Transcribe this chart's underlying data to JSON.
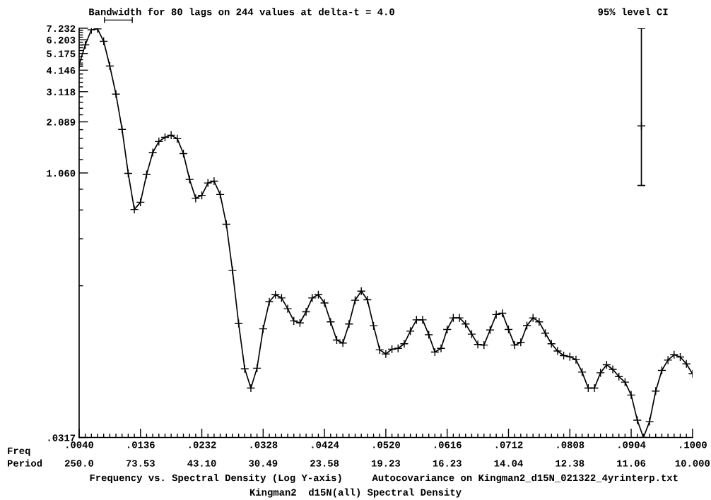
{
  "chart_data": {
    "type": "line",
    "title": "Kingman2  d15N(all) Spectral Density",
    "xlabel": "Frequency vs. Spectral Density (Log Y-axis)     Autocovariance on Kingman2_d15N_021322_4yrinterp.txt",
    "annotations": [
      "Bandwidth for 80 lags on 244 values at delta-t = 4.0",
      "95% level CI",
      "Freq",
      "Period",
      "250.0",
      "73.53",
      "43.10",
      "30.49",
      "23.58",
      "19.23",
      "16.23",
      "14.04",
      "12.38",
      "11.06",
      "10.000"
    ],
    "log": true,
    "grid": false,
    "marker": "cross",
    "line_style": "solid",
    "xlim": [
      0.004,
      0.1
    ],
    "ylim": [
      0.0317,
      7.232
    ],
    "series": [
      {
        "color": "#000000",
        "x": [
          0.004,
          0.00496,
          0.00592,
          0.00688,
          0.00784,
          0.0088,
          0.00976,
          0.01072,
          0.01168,
          0.01264,
          0.0136,
          0.01456,
          0.01552,
          0.01648,
          0.01744,
          0.0184,
          0.01936,
          0.02032,
          0.02128,
          0.02224,
          0.0232,
          0.02416,
          0.02512,
          0.02608,
          0.02704,
          0.028,
          0.02896,
          0.02992,
          0.03088,
          0.03184,
          0.0328,
          0.03376,
          0.03472,
          0.03568,
          0.03664,
          0.0376,
          0.03856,
          0.03952,
          0.04048,
          0.04144,
          0.0424,
          0.04336,
          0.04432,
          0.04528,
          0.04624,
          0.0472,
          0.04816,
          0.04912,
          0.05008,
          0.05104,
          0.052,
          0.05296,
          0.05392,
          0.05488,
          0.05584,
          0.0568,
          0.05776,
          0.05872,
          0.05968,
          0.06064,
          0.0616,
          0.06256,
          0.06352,
          0.06448,
          0.06544,
          0.0664,
          0.06736,
          0.06832,
          0.06928,
          0.07024,
          0.0712,
          0.07216,
          0.07312,
          0.07408,
          0.07504,
          0.076,
          0.07696,
          0.07792,
          0.07888,
          0.07984,
          0.0808,
          0.08176,
          0.08272,
          0.08368,
          0.08464,
          0.0856,
          0.08656,
          0.08752,
          0.08848,
          0.08944,
          0.0904,
          0.09136,
          0.09232,
          0.09328,
          0.09424,
          0.0952,
          0.09616,
          0.09712,
          0.09808,
          0.09904,
          0.1
        ],
        "values": [
          4.45,
          5.8,
          7.08,
          7.17,
          6.08,
          4.38,
          3.02,
          1.89,
          1.055,
          0.653,
          0.719,
          1.04,
          1.39,
          1.61,
          1.7,
          1.75,
          1.67,
          1.37,
          0.974,
          0.757,
          0.788,
          0.928,
          0.951,
          0.797,
          0.537,
          0.291,
          0.144,
          0.0788,
          0.0611,
          0.0795,
          0.134,
          0.192,
          0.211,
          0.202,
          0.175,
          0.149,
          0.145,
          0.168,
          0.202,
          0.211,
          0.189,
          0.147,
          0.1155,
          0.111,
          0.143,
          0.196,
          0.221,
          0.197,
          0.1395,
          0.1014,
          0.096,
          0.1023,
          0.1035,
          0.11,
          0.13,
          0.151,
          0.151,
          0.124,
          0.0985,
          0.1035,
          0.133,
          0.155,
          0.155,
          0.143,
          0.125,
          0.109,
          0.108,
          0.132,
          0.162,
          0.165,
          0.133,
          0.108,
          0.112,
          0.14,
          0.155,
          0.147,
          0.1266,
          0.11,
          0.0999,
          0.094,
          0.0926,
          0.089,
          0.0755,
          0.0611,
          0.0611,
          0.0748,
          0.0832,
          0.0783,
          0.0711,
          0.0661,
          0.0557,
          0.0399,
          0.0317,
          0.0392,
          0.0587,
          0.0772,
          0.0885,
          0.0951,
          0.0923,
          0.0842,
          0.0738
        ]
      },
      {
        "type": "scatter",
        "color": "#000000",
        "x": [
          0.092
        ],
        "values": [
          1.98
        ],
        "errors": [
          [
            0.898,
            7.23
          ]
        ]
      }
    ],
    "xticks": [
      {
        "value": 0.004,
        "label": ".0040"
      },
      {
        "value": 0.00496,
        "label": null
      },
      {
        "value": 0.00592,
        "label": null
      },
      {
        "value": 0.00688,
        "label": null
      },
      {
        "value": 0.00784,
        "label": null
      },
      {
        "value": 0.0088,
        "label": null
      },
      {
        "value": 0.00976,
        "label": null
      },
      {
        "value": 0.01072,
        "label": null
      },
      {
        "value": 0.01168,
        "label": null
      },
      {
        "value": 0.01264,
        "label": null
      },
      {
        "value": 0.0136,
        "label": ".0136"
      },
      {
        "value": 0.01456,
        "label": null
      },
      {
        "value": 0.01552,
        "label": null
      },
      {
        "value": 0.01648,
        "label": null
      },
      {
        "value": 0.01744,
        "label": null
      },
      {
        "value": 0.0184,
        "label": null
      },
      {
        "value": 0.01936,
        "label": null
      },
      {
        "value": 0.02032,
        "label": null
      },
      {
        "value": 0.02128,
        "label": null
      },
      {
        "value": 0.02224,
        "label": null
      },
      {
        "value": 0.0232,
        "label": ".0232"
      },
      {
        "value": 0.02416,
        "label": null
      },
      {
        "value": 0.02512,
        "label": null
      },
      {
        "value": 0.02608,
        "label": null
      },
      {
        "value": 0.02704,
        "label": null
      },
      {
        "value": 0.028,
        "label": null
      },
      {
        "value": 0.02896,
        "label": null
      },
      {
        "value": 0.02992,
        "label": null
      },
      {
        "value": 0.03088,
        "label": null
      },
      {
        "value": 0.03184,
        "label": null
      },
      {
        "value": 0.0328,
        "label": ".0328"
      },
      {
        "value": 0.03376,
        "label": null
      },
      {
        "value": 0.03472,
        "label": null
      },
      {
        "value": 0.03568,
        "label": null
      },
      {
        "value": 0.03664,
        "label": null
      },
      {
        "value": 0.0376,
        "label": null
      },
      {
        "value": 0.03856,
        "label": null
      },
      {
        "value": 0.03952,
        "label": null
      },
      {
        "value": 0.04048,
        "label": null
      },
      {
        "value": 0.04144,
        "label": null
      },
      {
        "value": 0.0424,
        "label": ".0424"
      },
      {
        "value": 0.04336,
        "label": null
      },
      {
        "value": 0.04432,
        "label": null
      },
      {
        "value": 0.04528,
        "label": null
      },
      {
        "value": 0.04624,
        "label": null
      },
      {
        "value": 0.0472,
        "label": null
      },
      {
        "value": 0.04816,
        "label": null
      },
      {
        "value": 0.04912,
        "label": null
      },
      {
        "value": 0.05008,
        "label": null
      },
      {
        "value": 0.05104,
        "label": null
      },
      {
        "value": 0.052,
        "label": ".0520"
      },
      {
        "value": 0.05296,
        "label": null
      },
      {
        "value": 0.05392,
        "label": null
      },
      {
        "value": 0.05488,
        "label": null
      },
      {
        "value": 0.05584,
        "label": null
      },
      {
        "value": 0.0568,
        "label": null
      },
      {
        "value": 0.05776,
        "label": null
      },
      {
        "value": 0.05872,
        "label": null
      },
      {
        "value": 0.05968,
        "label": null
      },
      {
        "value": 0.06064,
        "label": null
      },
      {
        "value": 0.0616,
        "label": ".0616"
      },
      {
        "value": 0.06256,
        "label": null
      },
      {
        "value": 0.06352,
        "label": null
      },
      {
        "value": 0.06448,
        "label": null
      },
      {
        "value": 0.06544,
        "label": null
      },
      {
        "value": 0.0664,
        "label": null
      },
      {
        "value": 0.06736,
        "label": null
      },
      {
        "value": 0.06832,
        "label": null
      },
      {
        "value": 0.06928,
        "label": null
      },
      {
        "value": 0.07024,
        "label": null
      },
      {
        "value": 0.0712,
        "label": ".0712"
      },
      {
        "value": 0.07216,
        "label": null
      },
      {
        "value": 0.07312,
        "label": null
      },
      {
        "value": 0.07408,
        "label": null
      },
      {
        "value": 0.07504,
        "label": null
      },
      {
        "value": 0.076,
        "label": null
      },
      {
        "value": 0.07696,
        "label": null
      },
      {
        "value": 0.07792,
        "label": null
      },
      {
        "value": 0.07888,
        "label": null
      },
      {
        "value": 0.07984,
        "label": null
      },
      {
        "value": 0.0808,
        "label": ".0808"
      },
      {
        "value": 0.08176,
        "label": null
      },
      {
        "value": 0.08272,
        "label": null
      },
      {
        "value": 0.08368,
        "label": null
      },
      {
        "value": 0.08464,
        "label": null
      },
      {
        "value": 0.0856,
        "label": null
      },
      {
        "value": 0.08656,
        "label": null
      },
      {
        "value": 0.08752,
        "label": null
      },
      {
        "value": 0.08848,
        "label": null
      },
      {
        "value": 0.08944,
        "label": null
      },
      {
        "value": 0.0904,
        "label": ".0904"
      },
      {
        "value": 0.09136,
        "label": null
      },
      {
        "value": 0.09232,
        "label": null
      },
      {
        "value": 0.09328,
        "label": null
      },
      {
        "value": 0.09424,
        "label": null
      },
      {
        "value": 0.0952,
        "label": null
      },
      {
        "value": 0.09616,
        "label": null
      },
      {
        "value": 0.09712,
        "label": null
      },
      {
        "value": 0.09808,
        "label": null
      },
      {
        "value": 0.09904,
        "label": null
      },
      {
        "value": 0.1,
        "label": ".1000"
      }
    ],
    "yticks": [
      {
        "value": 0.0317,
        "label": ".0317"
      },
      {
        "value": 0.2374,
        "label": null
      },
      {
        "value": 0.4431,
        "label": null
      },
      {
        "value": 0.6489,
        "label": null
      },
      {
        "value": 0.8546,
        "label": null
      },
      {
        "value": 1.0603,
        "label": "1.060"
      },
      {
        "value": 1.266,
        "label": null
      },
      {
        "value": 1.4718,
        "label": null
      },
      {
        "value": 1.6775,
        "label": null
      },
      {
        "value": 1.8832,
        "label": null
      },
      {
        "value": 2.0889,
        "label": "2.089"
      },
      {
        "value": 2.2947,
        "label": null
      },
      {
        "value": 2.5004,
        "label": null
      },
      {
        "value": 2.7061,
        "label": null
      },
      {
        "value": 2.9118,
        "label": null
      },
      {
        "value": 3.1175,
        "label": "3.118"
      },
      {
        "value": 3.3233,
        "label": null
      },
      {
        "value": 3.529,
        "label": null
      },
      {
        "value": 3.7347,
        "label": null
      },
      {
        "value": 3.9404,
        "label": null
      },
      {
        "value": 4.1462,
        "label": "4.146"
      },
      {
        "value": 4.3519,
        "label": null
      },
      {
        "value": 4.5576,
        "label": null
      },
      {
        "value": 4.7633,
        "label": null
      },
      {
        "value": 4.969,
        "label": null
      },
      {
        "value": 5.1748,
        "label": "5.175"
      },
      {
        "value": 5.3805,
        "label": null
      },
      {
        "value": 5.5862,
        "label": null
      },
      {
        "value": 5.7919,
        "label": null
      },
      {
        "value": 5.9977,
        "label": null
      },
      {
        "value": 6.2034,
        "label": "6.203"
      },
      {
        "value": 6.4091,
        "label": null
      },
      {
        "value": 6.6148,
        "label": null
      },
      {
        "value": 6.8205,
        "label": null
      },
      {
        "value": 7.0263,
        "label": null
      },
      {
        "value": 7.232,
        "label": "7.232"
      }
    ]
  }
}
